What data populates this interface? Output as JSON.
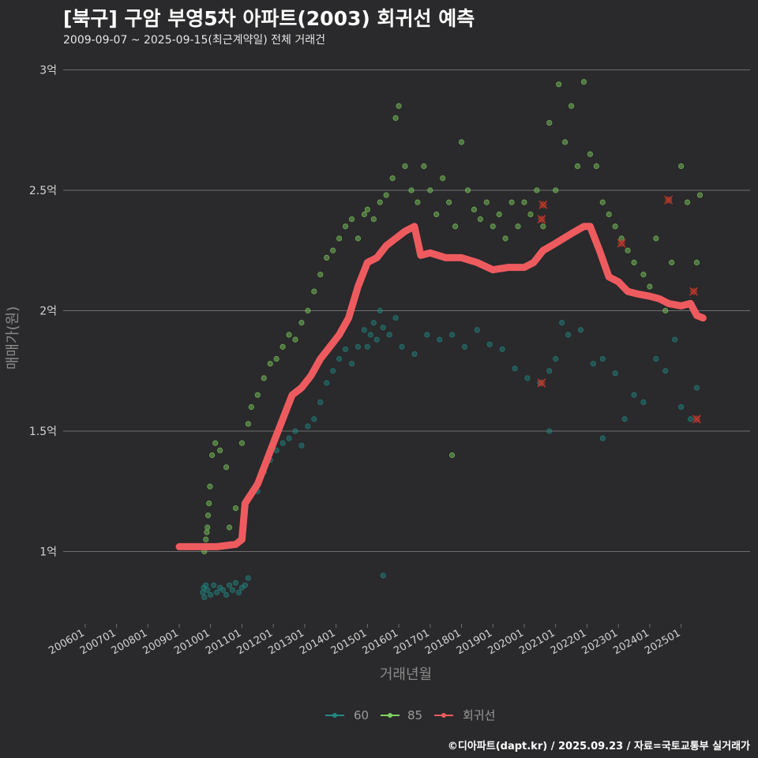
{
  "header": {
    "title": "[북구] 구암 부영5차 아파트(2003) 회귀선 예측",
    "subtitle": "2009-09-07 ~ 2025-09-15(최근계약일) 전체 거래건"
  },
  "footer": {
    "credit": "©디아파트(dapt.kr) / 2025.09.23 / 자료=국토교통부 실거래가"
  },
  "colors": {
    "background": "#2a292b",
    "grid": "#6e6e6e",
    "series_60": "#1f8a84",
    "series_85": "#7fd15f",
    "regression": "#ee5b5f",
    "outlier": "#c0392b"
  },
  "chart_data": {
    "type": "scatter",
    "title": "[북구] 구암 부영5차 아파트(2003) 회귀선 예측",
    "xlabel": "거래년월",
    "ylabel": "매매가(원)",
    "x_ticks": [
      "200601",
      "200701",
      "200801",
      "200901",
      "201001",
      "201101",
      "201201",
      "201301",
      "201401",
      "201501",
      "201601",
      "201701",
      "201801",
      "201901",
      "202001",
      "202101",
      "202201",
      "202301",
      "202401",
      "202501"
    ],
    "y_ticks": [
      {
        "value": 1.0,
        "label": "1억"
      },
      {
        "value": 1.5,
        "label": "1.5억"
      },
      {
        "value": 2.0,
        "label": "2억"
      },
      {
        "value": 2.5,
        "label": "2.5억"
      },
      {
        "value": 3.0,
        "label": "3억"
      }
    ],
    "xlim": [
      2005.3,
      2027.2
    ],
    "ylim": [
      0.7,
      3.1
    ],
    "y_unit": "억",
    "legend_position": "bottom",
    "legend": [
      "60",
      "85",
      "회귀선"
    ],
    "grid": true,
    "series": [
      {
        "name": "60",
        "kind": "points",
        "points": [
          [
            2009.75,
            0.83
          ],
          [
            2009.78,
            0.85
          ],
          [
            2009.8,
            0.81
          ],
          [
            2009.85,
            0.86
          ],
          [
            2009.9,
            0.84
          ],
          [
            2010.0,
            0.82
          ],
          [
            2010.1,
            0.86
          ],
          [
            2010.2,
            0.83
          ],
          [
            2010.3,
            0.85
          ],
          [
            2010.4,
            0.84
          ],
          [
            2010.5,
            0.82
          ],
          [
            2010.6,
            0.86
          ],
          [
            2010.7,
            0.84
          ],
          [
            2010.8,
            0.87
          ],
          [
            2010.9,
            0.83
          ],
          [
            2011.0,
            0.85
          ],
          [
            2011.1,
            0.86
          ],
          [
            2011.2,
            0.89
          ],
          [
            2011.5,
            1.25
          ],
          [
            2011.7,
            1.33
          ],
          [
            2011.9,
            1.38
          ],
          [
            2012.1,
            1.42
          ],
          [
            2012.3,
            1.45
          ],
          [
            2012.5,
            1.47
          ],
          [
            2012.7,
            1.5
          ],
          [
            2012.9,
            1.44
          ],
          [
            2013.1,
            1.52
          ],
          [
            2013.3,
            1.55
          ],
          [
            2013.5,
            1.62
          ],
          [
            2013.7,
            1.7
          ],
          [
            2013.9,
            1.75
          ],
          [
            2014.1,
            1.8
          ],
          [
            2014.3,
            1.84
          ],
          [
            2014.5,
            1.78
          ],
          [
            2014.7,
            1.85
          ],
          [
            2014.9,
            1.92
          ],
          [
            2015.0,
            1.85
          ],
          [
            2015.1,
            1.9
          ],
          [
            2015.2,
            1.95
          ],
          [
            2015.3,
            1.88
          ],
          [
            2015.4,
            2.0
          ],
          [
            2015.5,
            1.93
          ],
          [
            2015.7,
            1.9
          ],
          [
            2015.9,
            1.97
          ],
          [
            2015.5,
            0.9
          ],
          [
            2016.1,
            1.85
          ],
          [
            2016.5,
            1.82
          ],
          [
            2016.9,
            1.9
          ],
          [
            2017.3,
            1.88
          ],
          [
            2017.7,
            1.9
          ],
          [
            2018.1,
            1.85
          ],
          [
            2018.5,
            1.92
          ],
          [
            2018.9,
            1.86
          ],
          [
            2019.3,
            1.84
          ],
          [
            2019.7,
            1.76
          ],
          [
            2020.1,
            1.72
          ],
          [
            2020.5,
            1.7
          ],
          [
            2020.8,
            1.75
          ],
          [
            2021.0,
            1.8
          ],
          [
            2021.2,
            1.95
          ],
          [
            2021.4,
            1.9
          ],
          [
            2021.8,
            1.92
          ],
          [
            2022.2,
            1.78
          ],
          [
            2022.5,
            1.8
          ],
          [
            2022.9,
            1.74
          ],
          [
            2023.2,
            1.55
          ],
          [
            2023.5,
            1.65
          ],
          [
            2023.8,
            1.62
          ],
          [
            2024.2,
            1.8
          ],
          [
            2024.5,
            1.75
          ],
          [
            2024.8,
            1.88
          ],
          [
            2025.0,
            1.6
          ],
          [
            2025.3,
            1.55
          ],
          [
            2025.5,
            1.68
          ],
          [
            2020.8,
            1.5
          ],
          [
            2022.5,
            1.47
          ]
        ]
      },
      {
        "name": "85",
        "kind": "points",
        "points": [
          [
            2009.8,
            1.0
          ],
          [
            2009.82,
            1.02
          ],
          [
            2009.85,
            1.05
          ],
          [
            2009.88,
            1.08
          ],
          [
            2009.9,
            1.1
          ],
          [
            2009.92,
            1.15
          ],
          [
            2009.95,
            1.2
          ],
          [
            2009.98,
            1.27
          ],
          [
            2010.05,
            1.4
          ],
          [
            2010.15,
            1.45
          ],
          [
            2010.3,
            1.42
          ],
          [
            2010.5,
            1.35
          ],
          [
            2010.6,
            1.1
          ],
          [
            2010.8,
            1.18
          ],
          [
            2011.0,
            1.45
          ],
          [
            2011.2,
            1.53
          ],
          [
            2011.3,
            1.6
          ],
          [
            2011.5,
            1.65
          ],
          [
            2011.7,
            1.72
          ],
          [
            2011.9,
            1.78
          ],
          [
            2012.1,
            1.8
          ],
          [
            2012.3,
            1.85
          ],
          [
            2012.5,
            1.9
          ],
          [
            2012.7,
            1.88
          ],
          [
            2012.9,
            1.95
          ],
          [
            2013.1,
            2.0
          ],
          [
            2013.3,
            2.08
          ],
          [
            2013.5,
            2.15
          ],
          [
            2013.7,
            2.22
          ],
          [
            2013.9,
            2.25
          ],
          [
            2014.1,
            2.3
          ],
          [
            2014.3,
            2.35
          ],
          [
            2014.5,
            2.38
          ],
          [
            2014.7,
            2.3
          ],
          [
            2014.9,
            2.4
          ],
          [
            2015.0,
            2.42
          ],
          [
            2015.2,
            2.38
          ],
          [
            2015.4,
            2.45
          ],
          [
            2015.6,
            2.48
          ],
          [
            2015.8,
            2.55
          ],
          [
            2015.9,
            2.8
          ],
          [
            2016.0,
            2.85
          ],
          [
            2016.2,
            2.6
          ],
          [
            2016.4,
            2.5
          ],
          [
            2016.6,
            2.45
          ],
          [
            2016.8,
            2.6
          ],
          [
            2017.0,
            2.5
          ],
          [
            2017.2,
            2.4
          ],
          [
            2017.4,
            2.55
          ],
          [
            2017.6,
            2.45
          ],
          [
            2017.8,
            2.35
          ],
          [
            2018.0,
            2.7
          ],
          [
            2018.2,
            2.5
          ],
          [
            2018.4,
            2.42
          ],
          [
            2018.6,
            2.38
          ],
          [
            2018.8,
            2.45
          ],
          [
            2019.0,
            2.35
          ],
          [
            2019.2,
            2.4
          ],
          [
            2019.4,
            2.3
          ],
          [
            2019.6,
            2.45
          ],
          [
            2019.8,
            2.35
          ],
          [
            2020.0,
            2.45
          ],
          [
            2020.2,
            2.4
          ],
          [
            2020.4,
            2.5
          ],
          [
            2020.6,
            2.35
          ],
          [
            2020.8,
            2.78
          ],
          [
            2021.0,
            2.5
          ],
          [
            2021.1,
            2.94
          ],
          [
            2021.3,
            2.7
          ],
          [
            2021.5,
            2.85
          ],
          [
            2021.7,
            2.6
          ],
          [
            2021.9,
            2.95
          ],
          [
            2022.1,
            2.65
          ],
          [
            2022.3,
            2.6
          ],
          [
            2022.5,
            2.45
          ],
          [
            2022.7,
            2.4
          ],
          [
            2022.9,
            2.35
          ],
          [
            2023.1,
            2.3
          ],
          [
            2023.3,
            2.25
          ],
          [
            2023.5,
            2.2
          ],
          [
            2023.8,
            2.15
          ],
          [
            2024.0,
            2.1
          ],
          [
            2024.2,
            2.3
          ],
          [
            2024.5,
            2.0
          ],
          [
            2024.7,
            2.2
          ],
          [
            2025.0,
            2.6
          ],
          [
            2025.2,
            2.45
          ],
          [
            2025.5,
            2.2
          ],
          [
            2025.6,
            2.48
          ],
          [
            2017.7,
            1.4
          ]
        ]
      },
      {
        "name": "회귀선",
        "kind": "line",
        "points": [
          [
            2009.0,
            1.02
          ],
          [
            2009.5,
            1.02
          ],
          [
            2010.2,
            1.02
          ],
          [
            2010.8,
            1.03
          ],
          [
            2011.0,
            1.05
          ],
          [
            2011.1,
            1.2
          ],
          [
            2011.5,
            1.28
          ],
          [
            2012.0,
            1.45
          ],
          [
            2012.3,
            1.55
          ],
          [
            2012.6,
            1.65
          ],
          [
            2012.9,
            1.68
          ],
          [
            2013.2,
            1.73
          ],
          [
            2013.5,
            1.8
          ],
          [
            2013.8,
            1.85
          ],
          [
            2014.1,
            1.9
          ],
          [
            2014.4,
            1.97
          ],
          [
            2014.7,
            2.1
          ],
          [
            2015.0,
            2.2
          ],
          [
            2015.3,
            2.22
          ],
          [
            2015.6,
            2.27
          ],
          [
            2015.9,
            2.3
          ],
          [
            2016.2,
            2.33
          ],
          [
            2016.5,
            2.35
          ],
          [
            2016.7,
            2.23
          ],
          [
            2017.0,
            2.24
          ],
          [
            2017.5,
            2.22
          ],
          [
            2018.0,
            2.22
          ],
          [
            2018.5,
            2.2
          ],
          [
            2019.0,
            2.17
          ],
          [
            2019.5,
            2.18
          ],
          [
            2020.0,
            2.18
          ],
          [
            2020.3,
            2.2
          ],
          [
            2020.6,
            2.25
          ],
          [
            2021.0,
            2.28
          ],
          [
            2021.5,
            2.32
          ],
          [
            2021.9,
            2.35
          ],
          [
            2022.1,
            2.35
          ],
          [
            2022.4,
            2.25
          ],
          [
            2022.7,
            2.14
          ],
          [
            2023.0,
            2.12
          ],
          [
            2023.3,
            2.08
          ],
          [
            2023.6,
            2.07
          ],
          [
            2024.0,
            2.06
          ],
          [
            2024.3,
            2.05
          ],
          [
            2024.6,
            2.03
          ],
          [
            2025.0,
            2.02
          ],
          [
            2025.3,
            2.03
          ],
          [
            2025.5,
            1.98
          ],
          [
            2025.7,
            1.97
          ]
        ]
      }
    ],
    "outliers": [
      [
        2020.55,
        2.38
      ],
      [
        2020.6,
        2.44
      ],
      [
        2020.55,
        1.7
      ],
      [
        2023.1,
        2.28
      ],
      [
        2024.6,
        2.46
      ],
      [
        2025.4,
        2.08
      ],
      [
        2025.5,
        1.55
      ]
    ]
  }
}
